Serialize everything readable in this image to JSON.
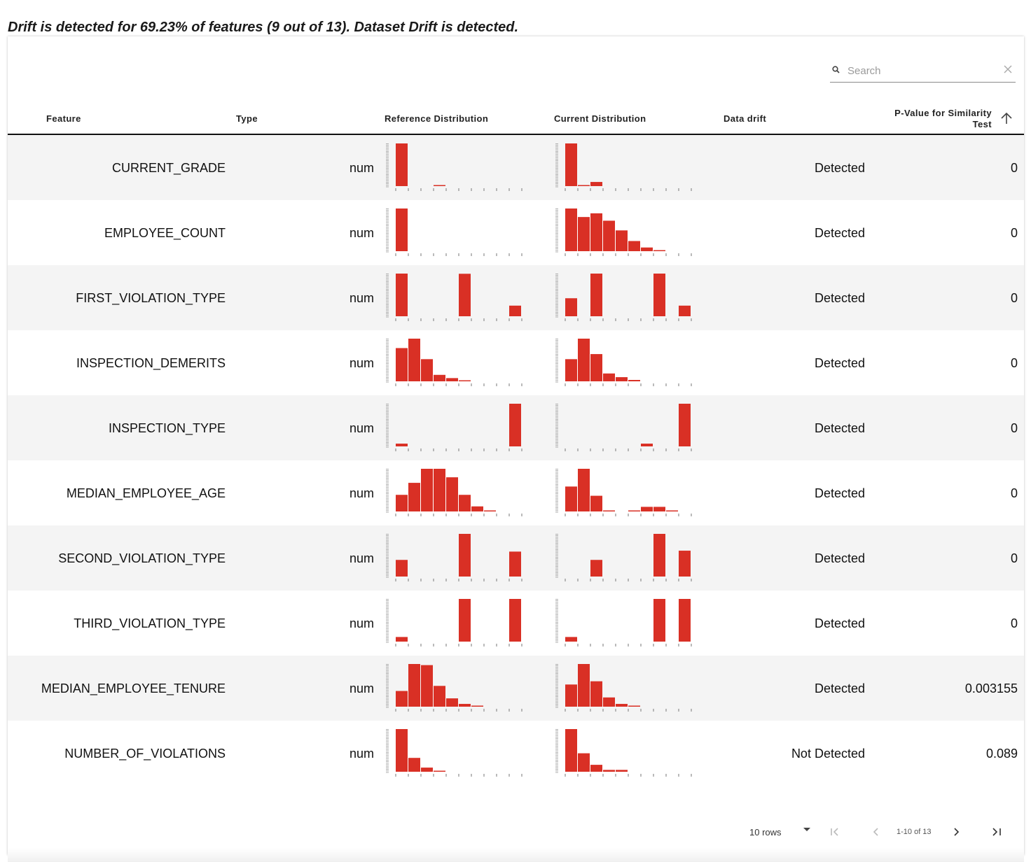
{
  "summary": "Drift is detected for 69.23% of features (9 out of 13). Dataset Drift is detected.",
  "search": {
    "placeholder": "Search"
  },
  "columns": {
    "feature": "Feature",
    "type": "Type",
    "reference": "Reference Distribution",
    "current": "Current Distribution",
    "drift": "Data drift",
    "pvalue": "P-Value for Similarity Test"
  },
  "bar_color": "#d93025",
  "rows": [
    {
      "feature": "CURRENT_GRADE",
      "type": "num",
      "drift": "Detected",
      "pvalue": "0",
      "ref": [
        1,
        0,
        0,
        0.02,
        0,
        0,
        0,
        0,
        0,
        0
      ],
      "cur": [
        1,
        0.02,
        0.09,
        0,
        0,
        0,
        0,
        0,
        0,
        0
      ]
    },
    {
      "feature": "EMPLOYEE_COUNT",
      "type": "num",
      "drift": "Detected",
      "pvalue": "0",
      "ref": [
        1,
        0,
        0,
        0,
        0,
        0,
        0,
        0,
        0,
        0
      ],
      "cur": [
        1,
        0.74,
        0.82,
        0.66,
        0.45,
        0.22,
        0.08,
        0.02,
        0,
        0
      ]
    },
    {
      "feature": "FIRST_VIOLATION_TYPE",
      "type": "num",
      "drift": "Detected",
      "pvalue": "0",
      "ref": [
        1,
        0,
        0,
        0,
        0,
        0.92,
        0,
        0,
        0,
        0.23
      ],
      "cur": [
        0.39,
        0,
        1,
        0,
        0,
        0,
        0,
        0.94,
        0,
        0.23
      ]
    },
    {
      "feature": "INSPECTION_DEMERITS",
      "type": "num",
      "drift": "Detected",
      "pvalue": "0",
      "ref": [
        0.72,
        1,
        0.48,
        0.14,
        0.07,
        0.02,
        0,
        0,
        0,
        0
      ],
      "cur": [
        0.48,
        1,
        0.59,
        0.17,
        0.09,
        0.03,
        0,
        0,
        0,
        0
      ]
    },
    {
      "feature": "INSPECTION_TYPE",
      "type": "num",
      "drift": "Detected",
      "pvalue": "0",
      "ref": [
        0.06,
        0,
        0,
        0,
        0,
        0,
        0,
        0,
        0,
        1
      ],
      "cur": [
        0,
        0,
        0,
        0,
        0,
        0,
        0.06,
        0,
        0,
        1
      ]
    },
    {
      "feature": "MEDIAN_EMPLOYEE_AGE",
      "type": "num",
      "drift": "Detected",
      "pvalue": "0",
      "ref": [
        0.36,
        0.62,
        0.95,
        1,
        0.74,
        0.36,
        0.11,
        0.02,
        0,
        0
      ],
      "cur": [
        0.54,
        1,
        0.34,
        0.02,
        0,
        0.02,
        0.1,
        0.1,
        0.02,
        0
      ]
    },
    {
      "feature": "SECOND_VIOLATION_TYPE",
      "type": "num",
      "drift": "Detected",
      "pvalue": "0",
      "ref": [
        0.36,
        0,
        0,
        0,
        0,
        1,
        0,
        0,
        0,
        0.54
      ],
      "cur": [
        0,
        0,
        0.36,
        0,
        0,
        0,
        0,
        1,
        0,
        0.56
      ]
    },
    {
      "feature": "THIRD_VIOLATION_TYPE",
      "type": "num",
      "drift": "Detected",
      "pvalue": "0",
      "ref": [
        0.1,
        0,
        0,
        0,
        0,
        1,
        0,
        0,
        0,
        1
      ],
      "cur": [
        0.1,
        0,
        0,
        0,
        0,
        0,
        0,
        1,
        0,
        1
      ]
    },
    {
      "feature": "MEDIAN_EMPLOYEE_TENURE",
      "type": "num",
      "drift": "Detected",
      "pvalue": "0.003155",
      "ref": [
        0.34,
        1,
        0.9,
        0.45,
        0.18,
        0.06,
        0.02,
        0,
        0,
        0
      ],
      "cur": [
        0.48,
        1,
        0.55,
        0.2,
        0.06,
        0.02,
        0,
        0,
        0,
        0
      ]
    },
    {
      "feature": "NUMBER_OF_VIOLATIONS",
      "type": "num",
      "drift": "Not Detected",
      "pvalue": "0.089",
      "ref": [
        1,
        0.3,
        0.09,
        0.02,
        0,
        0,
        0,
        0,
        0,
        0
      ],
      "cur": [
        1,
        0.4,
        0.15,
        0.04,
        0.04,
        0,
        0,
        0,
        0,
        0
      ]
    }
  ],
  "pager": {
    "rows_label": "10 rows",
    "range": "1-10 of 13"
  }
}
